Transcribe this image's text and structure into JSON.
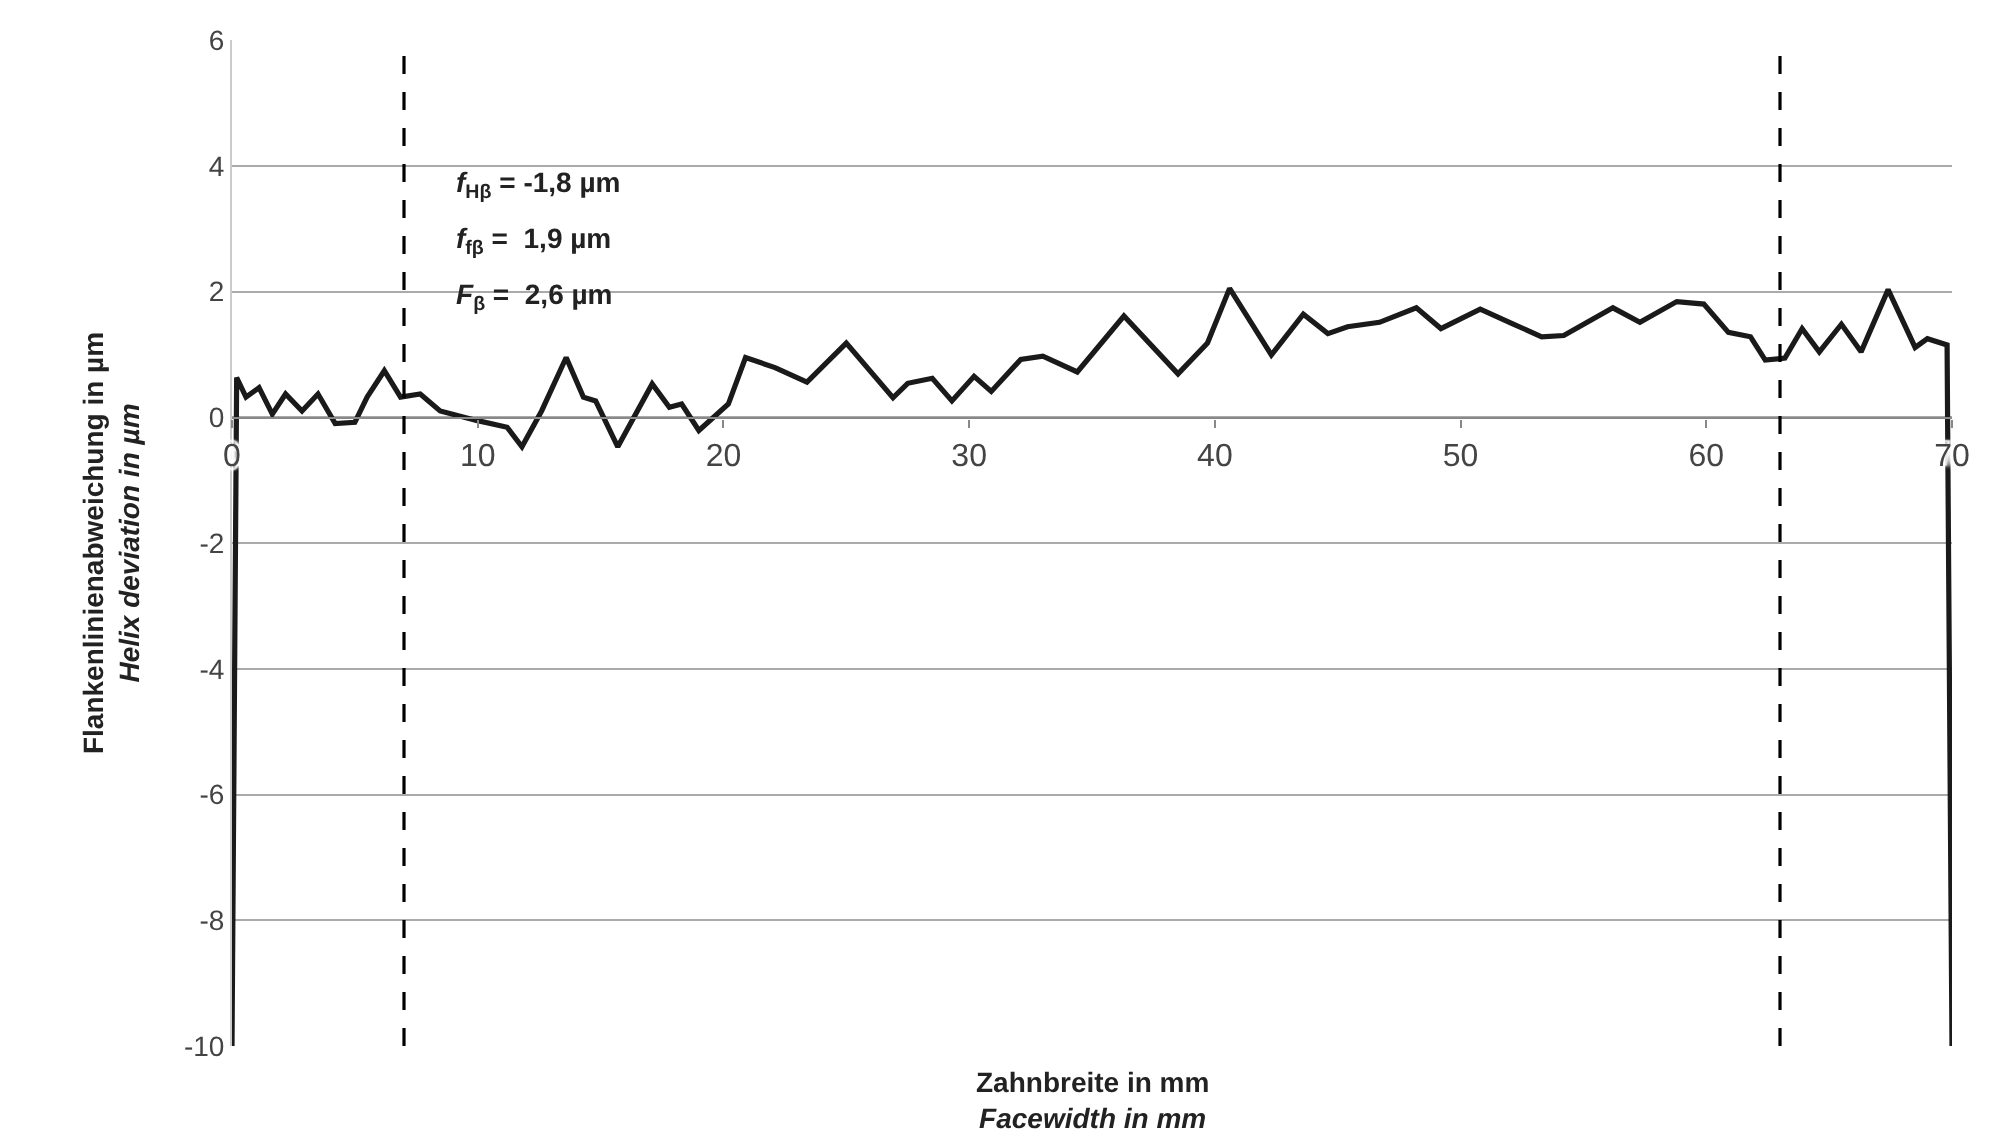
{
  "chart_data": {
    "type": "line",
    "xlabel": "Zahnbreite in mm\nFacewidth in mm",
    "ylabel": "Flankenlinienabweichung in µm\nHelix deviation in µm",
    "annotations": [
      "f$_{Hβ}$ = -1,8 µm",
      "f$_{fβ}$ =  1,9 µm",
      "F$_{β}$ =  2,6 µm"
    ],
    "xlim": [
      0,
      70
    ],
    "xticks": [
      0,
      10,
      20,
      30,
      40,
      50,
      60,
      70
    ],
    "ylim": [
      -10,
      6
    ],
    "yticks": [
      -10,
      -8,
      -6,
      -4,
      -2,
      0,
      2,
      4,
      6
    ],
    "grid": "y",
    "marker": "none",
    "line_style": "solid",
    "ref_lines": [
      {
        "axis": "x",
        "value": 7,
        "label": null,
        "color": "#000000",
        "line_style": "dashed"
      },
      {
        "axis": "x",
        "value": 63,
        "label": null,
        "color": "#000000",
        "line_style": "dashed"
      }
    ],
    "series": [
      {
        "color": "#1a1a1a",
        "x": [
          0,
          0.19,
          0.57,
          1.1,
          1.64,
          2.18,
          2.85,
          3.5,
          4.2,
          5.0,
          5.5,
          6.2,
          6.86,
          7.66,
          8.47,
          9.95,
          11.2,
          11.8,
          12.6,
          13.6,
          14.3,
          14.8,
          15.7,
          17.1,
          17.8,
          18.3,
          19.0,
          20.2,
          20.9,
          22.1,
          23.4,
          25.0,
          26.9,
          27.5,
          28.5,
          29.3,
          30.2,
          30.9,
          32.1,
          33.0,
          34.4,
          36.3,
          38.5,
          39.7,
          40.6,
          42.3,
          43.6,
          44.6,
          45.4,
          46.7,
          48.2,
          49.2,
          50.8,
          52.1,
          53.3,
          54.2,
          56.2,
          57.3,
          58.8,
          59.9,
          60.9,
          61.8,
          62.4,
          63.2,
          63.9,
          64.6,
          65.5,
          66.3,
          67.4,
          68.5,
          69.0,
          69.8,
          70
        ],
        "values": [
          -10,
          0.63,
          0.32,
          0.47,
          0.05,
          0.37,
          0.1,
          0.37,
          -0.1,
          -0.08,
          0.32,
          0.74,
          0.32,
          0.37,
          0.1,
          -0.05,
          -0.16,
          -0.47,
          0.1,
          0.95,
          0.32,
          0.26,
          -0.47,
          0.53,
          0.16,
          0.21,
          -0.21,
          0.21,
          0.95,
          0.79,
          0.56,
          1.18,
          0.31,
          0.54,
          0.62,
          0.26,
          0.65,
          0.41,
          0.92,
          0.97,
          0.72,
          1.61,
          0.69,
          1.18,
          2.05,
          0.99,
          1.64,
          1.33,
          1.44,
          1.51,
          1.74,
          1.41,
          1.72,
          1.49,
          1.28,
          1.3,
          1.74,
          1.51,
          1.84,
          1.8,
          1.35,
          1.28,
          0.91,
          0.94,
          1.41,
          1.04,
          1.48,
          1.04,
          2.03,
          1.11,
          1.25,
          1.15,
          -10
        ]
      }
    ]
  }
}
